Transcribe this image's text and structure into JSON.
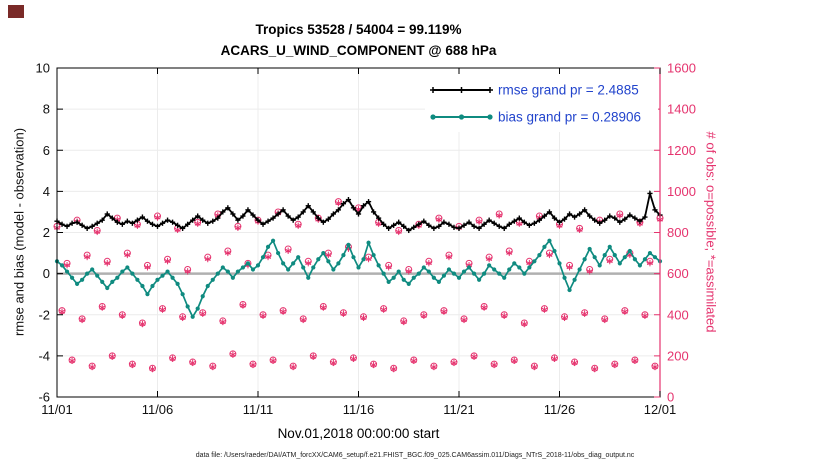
{
  "footer": {
    "text": "data file: /Users/raeder/DAI/ATM_forcXX/CAM6_setup/f.e21.FHIST_BGC.f09_025.CAM6assim.011/Diags_NTrS_2018-11/obs_diag_output.nc"
  },
  "colors": {
    "pink": "#e5336e",
    "teal": "#0f8b80",
    "black": "#000000",
    "legend_text": "#2244cc",
    "zero_line": "#b0b0b0",
    "grid": "#ececec"
  },
  "chart_data": {
    "type": "line",
    "title": "Tropics 53528 / 54004 = 99.119%",
    "subtitle": "ACARS_U_WIND_COMPONENT @ 688 hPa",
    "xlabel": "Nov.01,2018 00:00:00 start",
    "ylabel_left": "rmse and bias (model - observation)",
    "ylabel_right": "# of obs: o=possible; *=assimilated",
    "xlim": [
      0,
      30
    ],
    "ylim_left": [
      -6,
      10
    ],
    "ylim_right": [
      0,
      1600
    ],
    "xticks": [
      0,
      5,
      10,
      15,
      20,
      25,
      30
    ],
    "xtick_labels": [
      "11/01",
      "11/06",
      "11/11",
      "11/16",
      "11/21",
      "11/26",
      "12/01"
    ],
    "ytick_left": [
      -6,
      -4,
      -2,
      0,
      2,
      4,
      6,
      8,
      10
    ],
    "ytick_right": [
      0,
      200,
      400,
      600,
      800,
      1000,
      1200,
      1400,
      1600
    ],
    "x_start": 0,
    "x_step": 0.25,
    "grid": true,
    "legend": {
      "position": "top-right",
      "text_color": "#2244cc",
      "entries": [
        {
          "label": "rmse grand pr = 2.4885",
          "color": "#000000",
          "marker": "plus"
        },
        {
          "label": "bias grand pr = 0.28906",
          "color": "#0f8b80",
          "marker": "circle-filled"
        }
      ]
    },
    "series": [
      {
        "name": "rmse",
        "axis": "left",
        "color": "#000000",
        "marker": "plus",
        "values": [
          2.55,
          2.4,
          2.3,
          2.45,
          2.5,
          2.35,
          2.2,
          2.3,
          2.45,
          2.6,
          2.9,
          2.7,
          2.5,
          2.4,
          2.55,
          2.45,
          2.6,
          2.75,
          2.55,
          2.4,
          2.3,
          2.45,
          2.6,
          2.5,
          2.35,
          2.2,
          2.4,
          2.6,
          2.8,
          2.6,
          2.45,
          2.55,
          2.7,
          3.0,
          3.2,
          2.9,
          2.6,
          2.8,
          3.1,
          2.85,
          2.6,
          2.4,
          2.55,
          2.7,
          2.9,
          3.1,
          2.8,
          2.6,
          2.75,
          3.0,
          3.3,
          3.0,
          2.7,
          2.5,
          2.65,
          2.9,
          3.1,
          3.4,
          3.6,
          3.2,
          2.9,
          3.3,
          3.5,
          3.0,
          2.7,
          2.4,
          2.2,
          2.35,
          2.5,
          2.3,
          2.1,
          2.25,
          2.4,
          2.55,
          2.35,
          2.2,
          2.3,
          2.5,
          2.4,
          2.25,
          2.2,
          2.35,
          2.5,
          2.3,
          2.2,
          2.4,
          2.6,
          2.45,
          2.3,
          2.2,
          2.4,
          2.55,
          2.7,
          2.5,
          2.35,
          2.45,
          2.6,
          2.8,
          3.0,
          2.7,
          2.5,
          2.65,
          2.9,
          2.75,
          2.9,
          3.1,
          2.8,
          2.6,
          2.45,
          2.6,
          2.8,
          2.7,
          2.5,
          2.65,
          2.85,
          2.7,
          2.55,
          2.75,
          3.9,
          3.1,
          2.85
        ]
      },
      {
        "name": "bias",
        "axis": "left",
        "color": "#0f8b80",
        "marker": "circle-filled",
        "values": [
          0.6,
          0.4,
          0.1,
          -0.2,
          -0.5,
          -0.3,
          0.0,
          0.2,
          -0.1,
          -0.4,
          -0.7,
          -0.4,
          -0.2,
          0.1,
          0.3,
          0.0,
          -0.3,
          -0.6,
          -1.0,
          -0.6,
          -0.3,
          -0.1,
          0.1,
          -0.2,
          -0.5,
          -1.0,
          -1.6,
          -2.1,
          -1.7,
          -1.1,
          -0.6,
          -0.3,
          0.0,
          0.3,
          0.1,
          -0.2,
          0.1,
          0.3,
          0.5,
          0.2,
          0.4,
          0.8,
          1.3,
          1.6,
          1.0,
          0.5,
          0.2,
          0.5,
          0.8,
          0.3,
          -0.2,
          0.3,
          0.7,
          1.0,
          0.6,
          0.2,
          0.5,
          0.9,
          1.4,
          0.8,
          0.3,
          0.7,
          1.5,
          0.9,
          0.4,
          0.0,
          -0.4,
          -0.2,
          0.1,
          -0.3,
          -0.5,
          -0.2,
          0.0,
          0.3,
          0.1,
          -0.2,
          -0.4,
          -0.1,
          0.2,
          0.0,
          -0.2,
          0.1,
          0.3,
          0.0,
          -0.3,
          0.0,
          0.4,
          0.2,
          0.0,
          -0.2,
          0.2,
          0.5,
          0.3,
          0.0,
          0.3,
          0.6,
          0.9,
          1.3,
          1.6,
          1.1,
          0.5,
          -0.2,
          -0.8,
          -0.3,
          0.2,
          0.7,
          1.2,
          0.8,
          0.4,
          0.9,
          1.3,
          0.9,
          0.5,
          0.8,
          1.1,
          0.7,
          0.4,
          0.7,
          1.0,
          0.8,
          0.6
        ]
      },
      {
        "name": "possible",
        "axis": "right",
        "color": "#e5336e",
        "marker": "circle-open",
        "values": [
          830,
          420,
          650,
          180,
          860,
          380,
          690,
          150,
          810,
          440,
          660,
          200,
          870,
          400,
          700,
          160,
          840,
          360,
          640,
          140,
          880,
          430,
          670,
          190,
          820,
          390,
          620,
          170,
          850,
          410,
          680,
          150,
          890,
          370,
          710,
          210,
          830,
          450,
          650,
          160,
          860,
          400,
          690,
          180,
          900,
          420,
          720,
          150,
          840,
          380,
          660,
          200,
          870,
          440,
          700,
          170,
          950,
          410,
          730,
          190,
          920,
          390,
          680,
          160,
          850,
          430,
          640,
          140,
          810,
          370,
          620,
          180,
          840,
          400,
          660,
          150,
          870,
          420,
          690,
          170,
          830,
          380,
          650,
          200,
          860,
          440,
          680,
          160,
          890,
          400,
          710,
          180,
          850,
          360,
          660,
          150,
          880,
          430,
          700,
          190,
          840,
          390,
          640,
          170,
          820,
          410,
          620,
          140,
          860,
          380,
          670,
          160,
          890,
          420,
          700,
          180,
          850,
          400,
          660,
          150,
          870
        ]
      },
      {
        "name": "assimilated",
        "axis": "right",
        "color": "#e5336e",
        "marker": "asterisk",
        "values": [
          823,
          415,
          641,
          176,
          853,
          375,
          681,
          146,
          803,
          435,
          651,
          196,
          863,
          395,
          691,
          156,
          833,
          355,
          631,
          136,
          873,
          425,
          661,
          186,
          813,
          385,
          611,
          166,
          843,
          405,
          671,
          146,
          883,
          365,
          701,
          206,
          823,
          445,
          641,
          156,
          853,
          395,
          681,
          176,
          893,
          415,
          711,
          146,
          833,
          375,
          651,
          196,
          863,
          435,
          691,
          166,
          943,
          405,
          721,
          186,
          913,
          385,
          671,
          156,
          843,
          425,
          631,
          136,
          803,
          365,
          611,
          176,
          833,
          395,
          651,
          146,
          863,
          415,
          681,
          166,
          823,
          375,
          641,
          196,
          853,
          435,
          671,
          156,
          883,
          395,
          701,
          176,
          843,
          355,
          651,
          146,
          873,
          425,
          691,
          186,
          833,
          385,
          631,
          166,
          813,
          405,
          611,
          136,
          853,
          375,
          661,
          156,
          883,
          415,
          691,
          176,
          843,
          395,
          651,
          146,
          863
        ]
      }
    ]
  }
}
